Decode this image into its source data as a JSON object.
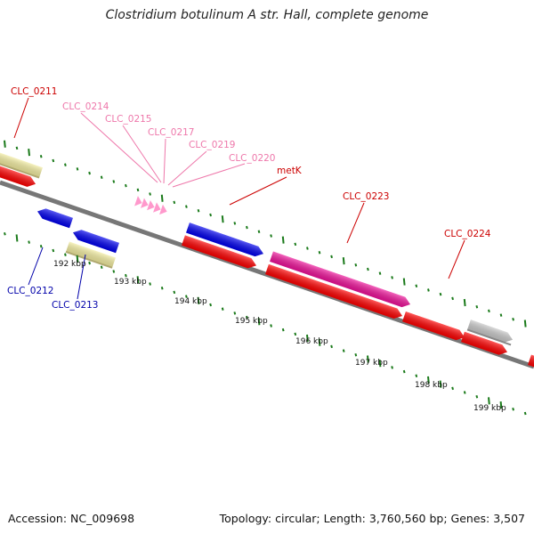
{
  "title": "Clostridium botulinum A str. Hall, complete genome",
  "footer": {
    "accession": "Accession: NC_009698",
    "summary": "Topology: circular; Length: 3,760,560 bp; Genes: 3,507"
  },
  "colors": {
    "red": "#ff0000",
    "blue": "#0000ee",
    "magenta": "#ee1199",
    "pink": "#ff99cc",
    "yellow": "#f3eda0",
    "gray": "#c8c8c8",
    "backbone": "#777777",
    "tick": "#1a7a1a",
    "label_red": "#cc0000",
    "label_blue": "#0000aa",
    "label_pink": "#ee77aa"
  },
  "scale_labels": [
    "192 kbp",
    "193 kbp",
    "194 kbp",
    "195 kbp",
    "196 kbp",
    "197 kbp",
    "198 kbp",
    "199 kbp"
  ],
  "gene_labels": [
    {
      "text": "CLC_0211",
      "color": "label_red"
    },
    {
      "text": "CLC_0214",
      "color": "label_pink"
    },
    {
      "text": "CLC_0215",
      "color": "label_pink"
    },
    {
      "text": "CLC_0217",
      "color": "label_pink"
    },
    {
      "text": "CLC_0219",
      "color": "label_pink"
    },
    {
      "text": "CLC_0220",
      "color": "label_pink"
    },
    {
      "text": "metK",
      "color": "label_red"
    },
    {
      "text": "CLC_0223",
      "color": "label_red"
    },
    {
      "text": "CLC_0224",
      "color": "label_red"
    },
    {
      "text": "CLC_0212",
      "color": "label_blue"
    },
    {
      "text": "CLC_0213",
      "color": "label_blue"
    }
  ]
}
